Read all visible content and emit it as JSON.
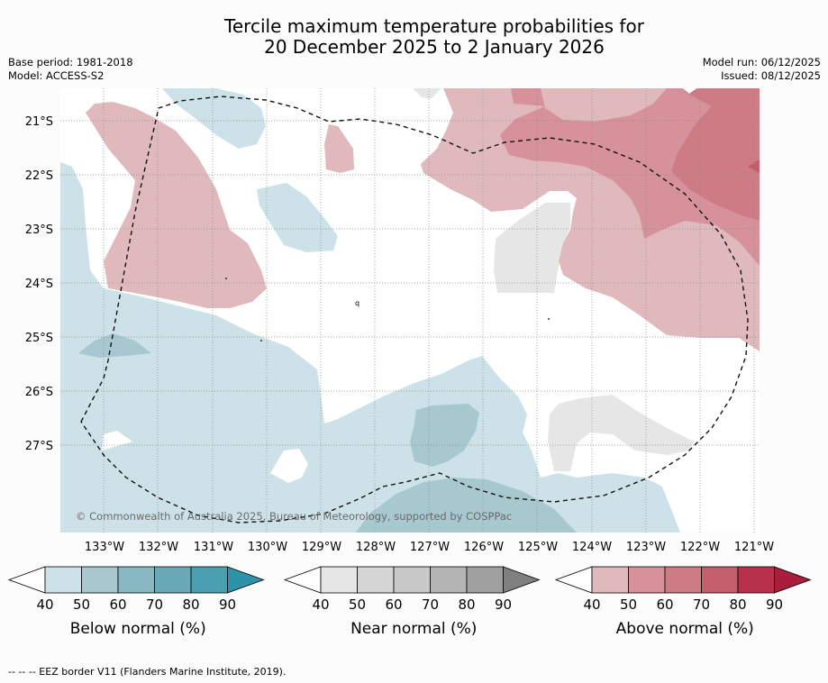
{
  "title": {
    "line1": "Tercile maximum temperature probabilities for",
    "line2": "20 December 2025 to 2 January 2026"
  },
  "meta": {
    "base_period": "Base period: 1981-2018",
    "model": "Model: ACCESS-S2",
    "model_run": "Model run: 06/12/2025",
    "issued": "Issued: 08/12/2025"
  },
  "map": {
    "copyright": "© Commonwealth of Australia 2025, Bureau of Meteorology, supported by COSPPac",
    "lat_labels": [
      "21°S",
      "22°S",
      "23°S",
      "24°S",
      "25°S",
      "26°S",
      "27°S"
    ],
    "lon_labels": [
      "133°W",
      "132°W",
      "131°W",
      "130°W",
      "129°W",
      "128°W",
      "127°W",
      "126°W",
      "125°W",
      "124°W",
      "123°W",
      "122°W",
      "121°W"
    ]
  },
  "legends": [
    {
      "label": "Below normal (%)",
      "ticks": [
        "40",
        "50",
        "60",
        "70",
        "80",
        "90"
      ],
      "colors": [
        "#ffffff",
        "#cce2e8",
        "#a6c8ce",
        "#88b8c2",
        "#6aaab8",
        "#4aa0b0",
        "#2e93a8"
      ]
    },
    {
      "label": "Near normal (%)",
      "ticks": [
        "40",
        "50",
        "60",
        "70",
        "80",
        "90"
      ],
      "colors": [
        "#ffffff",
        "#e6e6e6",
        "#d6d6d6",
        "#c8c8c8",
        "#b4b4b4",
        "#a0a0a0",
        "#808080"
      ]
    },
    {
      "label": "Above normal (%)",
      "ticks": [
        "40",
        "50",
        "60",
        "70",
        "80",
        "90"
      ],
      "colors": [
        "#ffffff",
        "#e0b9bd",
        "#d6919a",
        "#cd7b84",
        "#c45d6c",
        "#b8304c",
        "#a91e3c"
      ]
    }
  ],
  "footnote": "-- -- -- EEZ border V11 (Flanders Marine Institute, 2019)."
}
